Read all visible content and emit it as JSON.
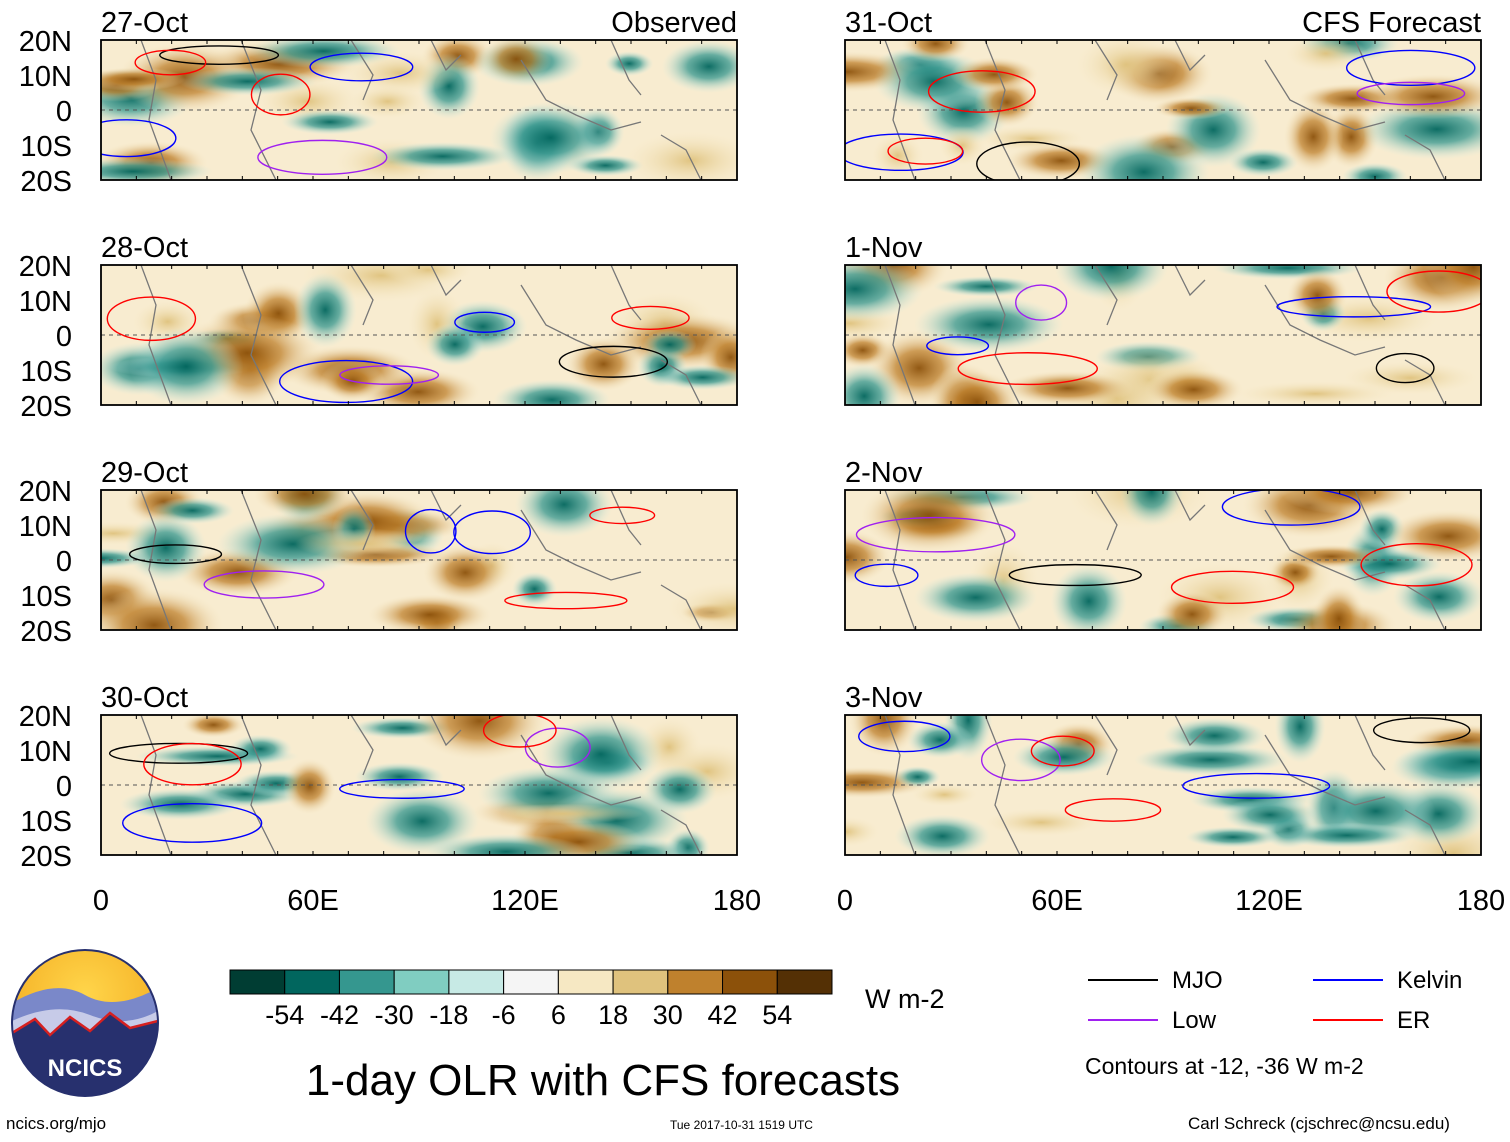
{
  "title": "1-day OLR with CFS forecasts",
  "columns": {
    "left_label": "Observed",
    "right_label": "CFS Forecast"
  },
  "lat_labels": [
    "20N",
    "10N",
    "0",
    "10S",
    "20S"
  ],
  "lon_labels": [
    "0",
    "60E",
    "120E",
    "180"
  ],
  "panels": [
    {
      "date": "27-Oct",
      "column": "observed"
    },
    {
      "date": "28-Oct",
      "column": "observed"
    },
    {
      "date": "29-Oct",
      "column": "observed"
    },
    {
      "date": "30-Oct",
      "column": "observed"
    },
    {
      "date": "31-Oct",
      "column": "forecast"
    },
    {
      "date": "1-Nov",
      "column": "forecast"
    },
    {
      "date": "2-Nov",
      "column": "forecast"
    },
    {
      "date": "3-Nov",
      "column": "forecast"
    }
  ],
  "colorbar": {
    "unit": "W m-2",
    "tick_labels": [
      "-54",
      "-42",
      "-30",
      "-18",
      "-6",
      "6",
      "18",
      "30",
      "42",
      "54"
    ],
    "colors": [
      "#003d33",
      "#01665e",
      "#35978f",
      "#80cdc1",
      "#c7eae5",
      "#f5f5f5",
      "#f6e8c3",
      "#dfc27d",
      "#bf812d",
      "#8c510a",
      "#543005"
    ]
  },
  "legend": {
    "items": [
      {
        "label": "MJO",
        "color": "#000000"
      },
      {
        "label": "Kelvin",
        "color": "#0000ff"
      },
      {
        "label": "Low",
        "color": "#a020f0"
      },
      {
        "label": "ER",
        "color": "#ff0000"
      }
    ],
    "note": "Contours at -12, -36 W m-2"
  },
  "logo": {
    "text": "NCICS"
  },
  "footer": {
    "website": "ncics.org/mjo",
    "timestamp": "Tue 2017-10-31 1519 UTC",
    "credit": "Carl Schreck (cjschrec@ncsu.edu)"
  }
}
